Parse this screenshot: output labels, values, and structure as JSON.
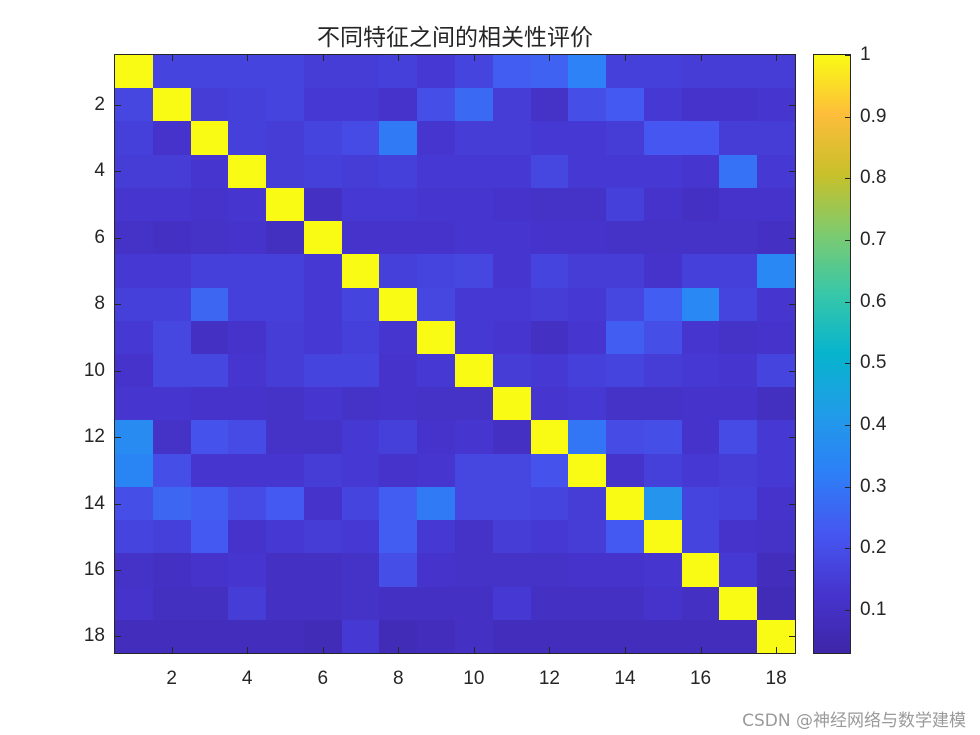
{
  "chart_data": {
    "type": "heatmap",
    "title": "不同特征之间的相关性评价",
    "xlabel": "",
    "ylabel": "",
    "x_ticks": [
      2,
      4,
      6,
      8,
      10,
      12,
      14,
      16,
      18
    ],
    "y_ticks": [
      2,
      4,
      6,
      8,
      10,
      12,
      14,
      16,
      18
    ],
    "x_range": [
      0.5,
      18.5
    ],
    "y_range": [
      0.5,
      18.5
    ],
    "rows": 18,
    "cols": 18,
    "colormap": "parula",
    "colorbar": {
      "ticks": [
        0.1,
        0.2,
        0.3,
        0.4,
        0.5,
        0.6,
        0.7,
        0.8,
        0.9,
        1
      ],
      "tick_labels": [
        "0.1",
        "0.2",
        "0.3",
        "0.4",
        "0.5",
        "0.6",
        "0.7",
        "0.8",
        "0.9",
        "1"
      ],
      "range": [
        0.03,
        1
      ]
    },
    "grid": false,
    "values": [
      [
        1.0,
        0.17,
        0.17,
        0.17,
        0.17,
        0.15,
        0.15,
        0.16,
        0.14,
        0.17,
        0.24,
        0.25,
        0.33,
        0.16,
        0.16,
        0.15,
        0.15,
        0.15
      ],
      [
        0.18,
        1.0,
        0.15,
        0.16,
        0.17,
        0.14,
        0.14,
        0.12,
        0.2,
        0.27,
        0.15,
        0.11,
        0.2,
        0.23,
        0.14,
        0.12,
        0.12,
        0.13
      ],
      [
        0.16,
        0.12,
        1.0,
        0.16,
        0.15,
        0.17,
        0.19,
        0.31,
        0.13,
        0.15,
        0.15,
        0.14,
        0.14,
        0.15,
        0.22,
        0.22,
        0.15,
        0.15
      ],
      [
        0.15,
        0.15,
        0.13,
        1.0,
        0.15,
        0.16,
        0.15,
        0.16,
        0.14,
        0.14,
        0.14,
        0.18,
        0.14,
        0.14,
        0.14,
        0.13,
        0.29,
        0.14
      ],
      [
        0.13,
        0.13,
        0.12,
        0.13,
        1.0,
        0.1,
        0.14,
        0.14,
        0.13,
        0.13,
        0.12,
        0.11,
        0.11,
        0.16,
        0.12,
        0.1,
        0.12,
        0.12
      ],
      [
        0.11,
        0.1,
        0.11,
        0.12,
        0.09,
        1.0,
        0.12,
        0.12,
        0.12,
        0.13,
        0.13,
        0.12,
        0.12,
        0.11,
        0.11,
        0.11,
        0.11,
        0.1
      ],
      [
        0.14,
        0.14,
        0.16,
        0.16,
        0.16,
        0.14,
        1.0,
        0.16,
        0.17,
        0.18,
        0.13,
        0.17,
        0.15,
        0.15,
        0.12,
        0.16,
        0.16,
        0.35
      ],
      [
        0.16,
        0.16,
        0.26,
        0.16,
        0.16,
        0.14,
        0.17,
        1.0,
        0.18,
        0.14,
        0.14,
        0.15,
        0.14,
        0.18,
        0.24,
        0.35,
        0.17,
        0.13
      ],
      [
        0.14,
        0.18,
        0.1,
        0.12,
        0.15,
        0.14,
        0.16,
        0.13,
        1.0,
        0.14,
        0.13,
        0.1,
        0.13,
        0.24,
        0.2,
        0.13,
        0.11,
        0.12
      ],
      [
        0.12,
        0.18,
        0.18,
        0.13,
        0.15,
        0.17,
        0.17,
        0.12,
        0.14,
        1.0,
        0.15,
        0.14,
        0.16,
        0.17,
        0.15,
        0.14,
        0.13,
        0.17
      ],
      [
        0.13,
        0.13,
        0.12,
        0.12,
        0.11,
        0.13,
        0.11,
        0.12,
        0.11,
        0.11,
        1.0,
        0.13,
        0.14,
        0.11,
        0.11,
        0.12,
        0.12,
        0.09
      ],
      [
        0.36,
        0.11,
        0.21,
        0.19,
        0.11,
        0.11,
        0.14,
        0.16,
        0.12,
        0.13,
        0.1,
        1.0,
        0.3,
        0.19,
        0.2,
        0.12,
        0.19,
        0.14
      ],
      [
        0.34,
        0.2,
        0.13,
        0.13,
        0.13,
        0.15,
        0.14,
        0.12,
        0.13,
        0.18,
        0.18,
        0.21,
        1.0,
        0.12,
        0.16,
        0.14,
        0.15,
        0.14
      ],
      [
        0.2,
        0.26,
        0.24,
        0.19,
        0.23,
        0.12,
        0.17,
        0.24,
        0.31,
        0.18,
        0.18,
        0.17,
        0.15,
        1.0,
        0.39,
        0.17,
        0.16,
        0.12
      ],
      [
        0.17,
        0.16,
        0.23,
        0.12,
        0.14,
        0.15,
        0.14,
        0.24,
        0.14,
        0.11,
        0.15,
        0.14,
        0.15,
        0.23,
        1.0,
        0.17,
        0.12,
        0.11
      ],
      [
        0.11,
        0.1,
        0.12,
        0.13,
        0.1,
        0.1,
        0.11,
        0.2,
        0.12,
        0.11,
        0.11,
        0.11,
        0.12,
        0.12,
        0.13,
        1.0,
        0.14,
        0.08
      ],
      [
        0.12,
        0.09,
        0.09,
        0.15,
        0.1,
        0.1,
        0.11,
        0.1,
        0.1,
        0.1,
        0.14,
        0.1,
        0.1,
        0.1,
        0.12,
        0.1,
        1.0,
        0.07
      ],
      [
        0.08,
        0.08,
        0.08,
        0.08,
        0.08,
        0.07,
        0.14,
        0.07,
        0.08,
        0.1,
        0.08,
        0.08,
        0.08,
        0.08,
        0.08,
        0.08,
        0.08,
        1.0
      ]
    ]
  },
  "watermark": "CSDN @神经网络与数学建模"
}
